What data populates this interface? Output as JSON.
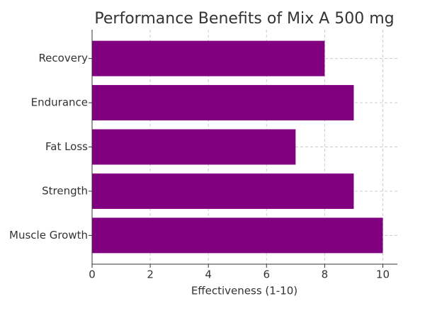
{
  "chart_data": {
    "type": "barh",
    "title": "Performance Benefits of Mix A 500 mg",
    "x_label": "Effectiveness (1-10)",
    "categories": [
      "Muscle Growth",
      "Strength",
      "Fat Loss",
      "Endurance",
      "Recovery"
    ],
    "values": [
      10,
      9,
      7,
      9,
      8
    ],
    "color": "#800080",
    "xlim": [
      0,
      10.5
    ],
    "xticks": [
      0,
      2,
      4,
      6,
      8,
      10
    ],
    "grid": true
  }
}
